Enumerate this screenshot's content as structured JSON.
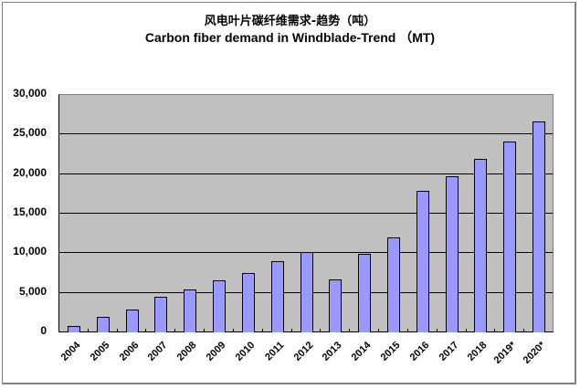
{
  "chart_data": {
    "type": "bar",
    "title": "风电叶片碳纤维需求-趋势（吨）",
    "subtitle": "Carbon fiber demand in Windblade-Trend （MT)",
    "xlabel": "",
    "ylabel": "",
    "categories": [
      "2004",
      "2005",
      "2006",
      "2007",
      "2008",
      "2009",
      "2010",
      "2011",
      "2012",
      "2013",
      "2014",
      "2015",
      "2016",
      "2017",
      "2018",
      "2019*",
      "2020*"
    ],
    "values": [
      800,
      1950,
      2900,
      4500,
      5400,
      6550,
      7450,
      8950,
      10100,
      6650,
      9950,
      12050,
      17900,
      19750,
      21950,
      24100,
      26600
    ],
    "ylim": [
      0,
      30000
    ],
    "yticks": [
      "0",
      "5,000",
      "10,000",
      "15,000",
      "20,000",
      "25,000",
      "30,000"
    ],
    "grid": true,
    "legend": "none",
    "colors": {
      "bar": "#9999ff",
      "bar_border": "#000000",
      "plot_bg": "#c0c0c0",
      "gridline": "#000000"
    }
  }
}
